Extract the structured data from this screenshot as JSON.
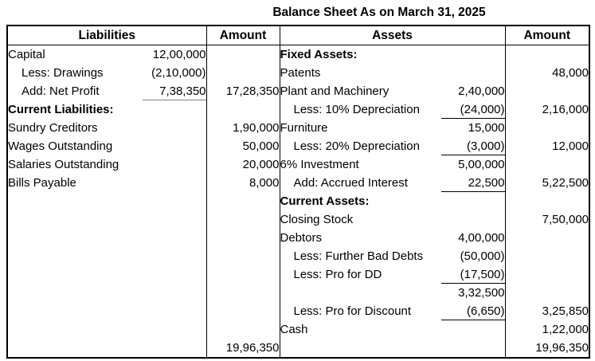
{
  "title": "Balance Sheet As on March 31, 2025",
  "colors": {
    "text": "#000000",
    "background": "#ffffff",
    "border": "#000000",
    "sum_line_liabilities": "#808080",
    "sum_line_assets": "#000000"
  },
  "table": {
    "headers": {
      "liabilities": "Liabilities",
      "liabilities_amount": "Amount",
      "assets": "Assets",
      "assets_amount": "Amount"
    },
    "rows": [
      {
        "liability": {
          "label": "Capital",
          "sub": "12,00,000",
          "amount": "",
          "bold": false,
          "indent": false,
          "underline": false,
          "topline": false
        },
        "asset": {
          "label": "Fixed Assets:",
          "sub": "",
          "amount": "",
          "bold": true,
          "indent": false,
          "underline": false,
          "topline": false
        }
      },
      {
        "liability": {
          "label": "Less: Drawings",
          "sub": "(2,10,000)",
          "amount": "",
          "bold": false,
          "indent": true,
          "underline": false,
          "topline": false
        },
        "asset": {
          "label": "Patents",
          "sub": "",
          "amount": "48,000",
          "bold": false,
          "indent": false,
          "underline": false,
          "topline": false
        }
      },
      {
        "liability": {
          "label": "Add: Net Profit",
          "sub": "7,38,350",
          "amount": "17,28,350",
          "bold": false,
          "indent": true,
          "underline": true,
          "topline": false
        },
        "asset": {
          "label": "Plant and Machinery",
          "sub": "2,40,000",
          "amount": "",
          "bold": false,
          "indent": false,
          "underline": false,
          "topline": false
        }
      },
      {
        "liability": {
          "label": "Current Liabilities:",
          "sub": "",
          "amount": "",
          "bold": true,
          "indent": false,
          "underline": false,
          "topline": false
        },
        "asset": {
          "label": "Less: 10% Depreciation",
          "sub": "(24,000)",
          "amount": "2,16,000",
          "bold": false,
          "indent": true,
          "underline": true,
          "topline": false
        }
      },
      {
        "liability": {
          "label": "Sundry Creditors",
          "sub": "",
          "amount": "1,90,000",
          "bold": false,
          "indent": false,
          "underline": false,
          "topline": false
        },
        "asset": {
          "label": "Furniture",
          "sub": "15,000",
          "amount": "",
          "bold": false,
          "indent": false,
          "underline": false,
          "topline": false
        }
      },
      {
        "liability": {
          "label": "Wages Outstanding",
          "sub": "",
          "amount": "50,000",
          "bold": false,
          "indent": false,
          "underline": false,
          "topline": false
        },
        "asset": {
          "label": "Less: 20% Depreciation",
          "sub": "(3,000)",
          "amount": "12,000",
          "bold": false,
          "indent": true,
          "underline": true,
          "topline": false
        }
      },
      {
        "liability": {
          "label": "Salaries Outstanding",
          "sub": "",
          "amount": "20,000",
          "bold": false,
          "indent": false,
          "underline": false,
          "topline": false
        },
        "asset": {
          "label": "6% Investment",
          "sub": "5,00,000",
          "amount": "",
          "bold": false,
          "indent": false,
          "underline": false,
          "topline": false
        }
      },
      {
        "liability": {
          "label": "Bills Payable",
          "sub": "",
          "amount": "8,000",
          "bold": false,
          "indent": false,
          "underline": false,
          "topline": false
        },
        "asset": {
          "label": "Add: Accrued Interest",
          "sub": "22,500",
          "amount": "5,22,500",
          "bold": false,
          "indent": true,
          "underline": true,
          "topline": false
        }
      },
      {
        "liability": {
          "label": "",
          "sub": "",
          "amount": "",
          "bold": false,
          "indent": false,
          "underline": false,
          "topline": false
        },
        "asset": {
          "label": "Current Assets:",
          "sub": "",
          "amount": "",
          "bold": true,
          "indent": false,
          "underline": false,
          "topline": false
        }
      },
      {
        "liability": {
          "label": "",
          "sub": "",
          "amount": "",
          "bold": false,
          "indent": false,
          "underline": false,
          "topline": false
        },
        "asset": {
          "label": "Closing Stock",
          "sub": "",
          "amount": "7,50,000",
          "bold": false,
          "indent": false,
          "underline": false,
          "topline": false
        }
      },
      {
        "liability": {
          "label": "",
          "sub": "",
          "amount": "",
          "bold": false,
          "indent": false,
          "underline": false,
          "topline": false
        },
        "asset": {
          "label": "Debtors",
          "sub": "4,00,000",
          "amount": "",
          "bold": false,
          "indent": false,
          "underline": false,
          "topline": false
        }
      },
      {
        "liability": {
          "label": "",
          "sub": "",
          "amount": "",
          "bold": false,
          "indent": false,
          "underline": false,
          "topline": false
        },
        "asset": {
          "label": "Less: Further Bad Debts",
          "sub": "(50,000)",
          "amount": "",
          "bold": false,
          "indent": true,
          "underline": false,
          "topline": false
        }
      },
      {
        "liability": {
          "label": "",
          "sub": "",
          "amount": "",
          "bold": false,
          "indent": false,
          "underline": false,
          "topline": false
        },
        "asset": {
          "label": "Less: Pro for DD",
          "sub": "(17,500)",
          "amount": "",
          "bold": false,
          "indent": true,
          "underline": true,
          "topline": false
        }
      },
      {
        "liability": {
          "label": "",
          "sub": "",
          "amount": "",
          "bold": false,
          "indent": false,
          "underline": false,
          "topline": false
        },
        "asset": {
          "label": "",
          "sub": "3,32,500",
          "amount": "",
          "bold": false,
          "indent": false,
          "underline": false,
          "topline": false
        }
      },
      {
        "liability": {
          "label": "",
          "sub": "",
          "amount": "",
          "bold": false,
          "indent": false,
          "underline": false,
          "topline": false
        },
        "asset": {
          "label": "Less: Pro for Discount",
          "sub": "(6,650)",
          "amount": "3,25,850",
          "bold": false,
          "indent": true,
          "underline": true,
          "topline": false
        }
      },
      {
        "liability": {
          "label": "",
          "sub": "",
          "amount": "",
          "bold": false,
          "indent": false,
          "underline": false,
          "topline": false
        },
        "asset": {
          "label": "Cash",
          "sub": "",
          "amount": "1,22,000",
          "bold": false,
          "indent": false,
          "underline": false,
          "topline": false
        }
      },
      {
        "liability": {
          "label": "",
          "sub": "",
          "amount": "19,96,350",
          "bold": false,
          "indent": false,
          "underline": false,
          "topline": true
        },
        "asset": {
          "label": "",
          "sub": "",
          "amount": "19,96,350",
          "bold": false,
          "indent": false,
          "underline": false,
          "topline": true
        }
      }
    ]
  }
}
